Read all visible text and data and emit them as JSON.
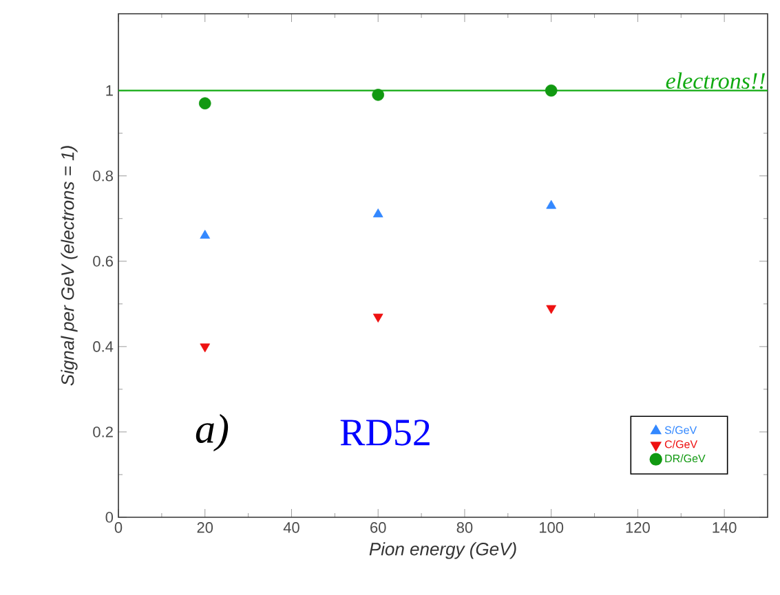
{
  "chart_data": {
    "type": "scatter",
    "xlabel": "Pion energy (GeV)",
    "ylabel": "Signal per GeV (electrons = 1)",
    "x": [
      20,
      60,
      100
    ],
    "series": [
      {
        "name": "S/GeV",
        "color": "#3388ff",
        "marker": "triangle",
        "values": [
          0.66,
          0.71,
          0.73
        ]
      },
      {
        "name": "C/GeV",
        "color": "#ee1111",
        "marker": "triangle-down",
        "values": [
          0.4,
          0.47,
          0.49
        ]
      },
      {
        "name": "DR/GeV",
        "color": "#119911",
        "marker": "circle",
        "values": [
          0.97,
          0.99,
          1.0
        ]
      }
    ],
    "xlim": [
      0,
      150
    ],
    "xticks": [
      0,
      20,
      40,
      60,
      80,
      100,
      120,
      140
    ],
    "ylim": [
      0,
      1.18
    ],
    "yticks": [
      0,
      0.2,
      0.4,
      0.6,
      0.8,
      1
    ],
    "ref_lines": [
      {
        "axis": "y",
        "value": 1,
        "label": "electrons!!",
        "color": "#11aa11"
      }
    ],
    "annotations": [
      "a)",
      "RD52"
    ],
    "legend": "bottom right",
    "grid": false
  }
}
